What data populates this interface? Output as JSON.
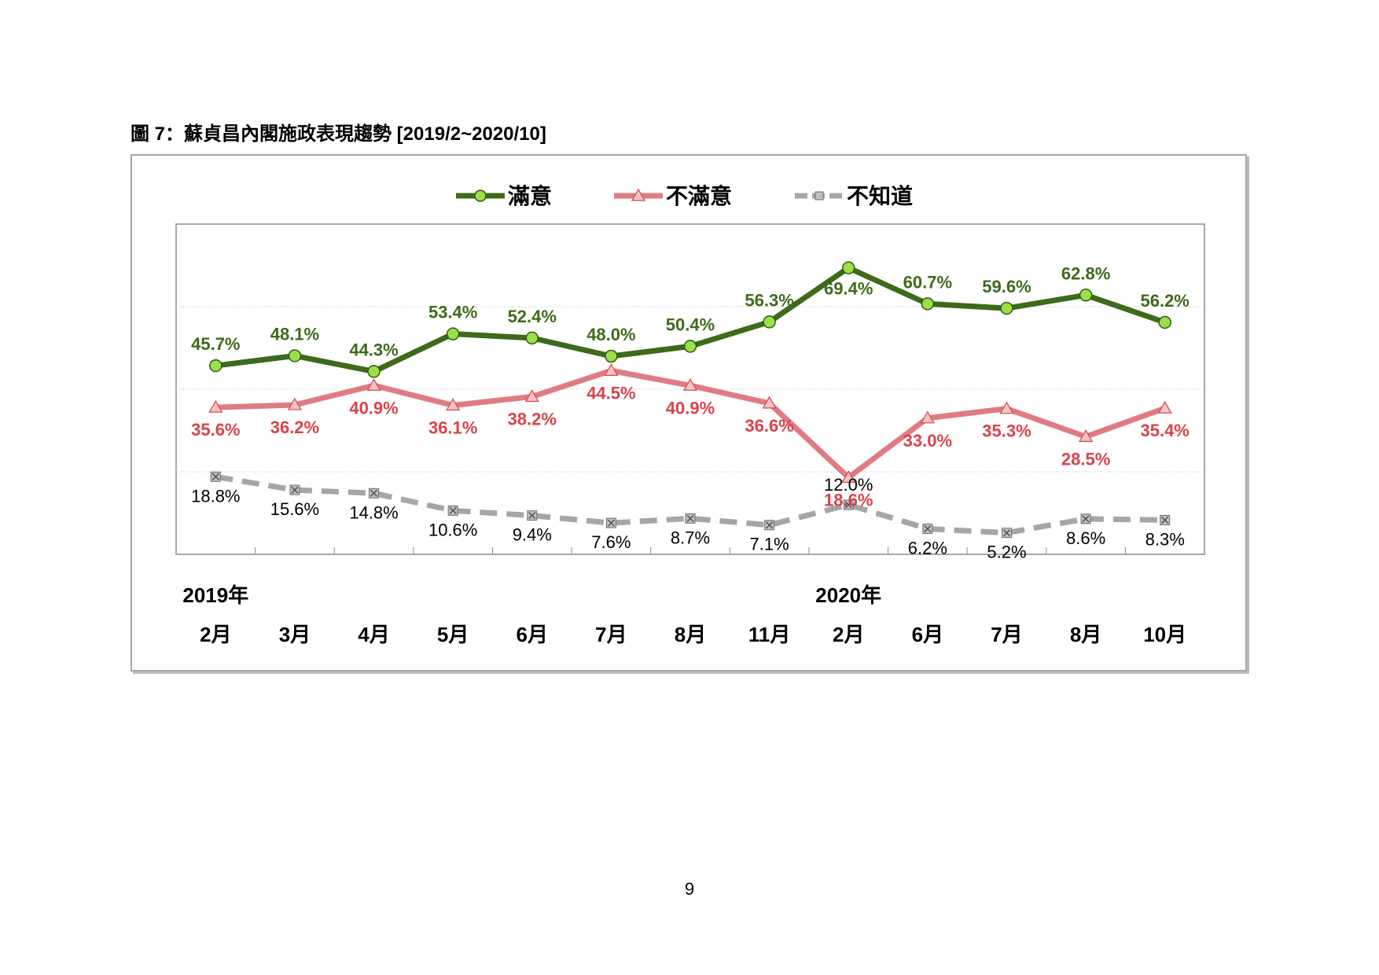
{
  "page": {
    "figure_title": "圖 7：蘇貞昌內閣施政表現趨勢  [2019/2~2020/10]",
    "page_number": "9"
  },
  "chart_data": {
    "type": "line",
    "title": "圖 7：蘇貞昌內閣施政表現趨勢  [2019/2~2020/10]",
    "categories": [
      "2月",
      "3月",
      "4月",
      "5月",
      "6月",
      "7月",
      "8月",
      "11月",
      "2月",
      "6月",
      "7月",
      "8月",
      "10月"
    ],
    "year_labels": [
      {
        "label": "2019年",
        "index": 0
      },
      {
        "label": "2020年",
        "index": 8
      }
    ],
    "ylim": [
      0,
      80
    ],
    "grid": true,
    "legend_position": "top-center",
    "series": [
      {
        "name": "滿意",
        "color": "#3d6b1a",
        "marker": "circle",
        "marker_color": "#9be04a",
        "style": "solid",
        "label_color": "#3d6b1a",
        "label_bold": true,
        "values": [
          45.7,
          48.1,
          44.3,
          53.4,
          52.4,
          48.0,
          50.4,
          56.3,
          69.4,
          60.7,
          59.6,
          62.8,
          56.2
        ],
        "labels": [
          "45.7%",
          "48.1%",
          "44.3%",
          "53.4%",
          "52.4%",
          "48.0%",
          "50.4%",
          "56.3%",
          "69.4%",
          "60.7%",
          "59.6%",
          "62.8%",
          "56.2%"
        ]
      },
      {
        "name": "不滿意",
        "color": "#e07b82",
        "marker": "triangle",
        "marker_color": "#f4c4c4",
        "style": "solid",
        "label_color": "#d9434b",
        "label_bold": true,
        "values": [
          35.6,
          36.2,
          40.9,
          36.1,
          38.2,
          44.5,
          40.9,
          36.6,
          18.6,
          33.0,
          35.3,
          28.5,
          35.4
        ],
        "labels": [
          "35.6%",
          "36.2%",
          "40.9%",
          "36.1%",
          "38.2%",
          "44.5%",
          "40.9%",
          "36.6%",
          "18.6%",
          "33.0%",
          "35.3%",
          "28.5%",
          "35.4%"
        ]
      },
      {
        "name": "不知道",
        "color": "#a6a6a6",
        "marker": "x-square",
        "marker_color": "#bfbfbf",
        "style": "dashed",
        "label_color": "#000000",
        "label_bold": false,
        "values": [
          18.8,
          15.6,
          14.8,
          10.6,
          9.4,
          7.6,
          8.7,
          7.1,
          12.0,
          6.2,
          5.2,
          8.6,
          8.3
        ],
        "labels": [
          "18.8%",
          "15.6%",
          "14.8%",
          "10.6%",
          "9.4%",
          "7.6%",
          "8.7%",
          "7.1%",
          "12.0%",
          "6.2%",
          "5.2%",
          "8.6%",
          "8.3%"
        ]
      }
    ]
  }
}
